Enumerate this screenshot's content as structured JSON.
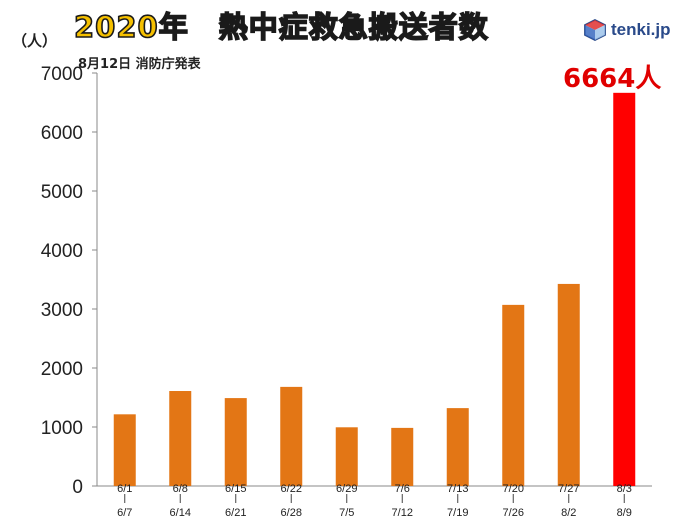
{
  "header": {
    "title": "2020年　熱中症救急搬送者数",
    "unit": "（人）",
    "source": "8月12日 消防庁発表",
    "brand": "tenki.jp"
  },
  "callout": {
    "text": "6664人"
  },
  "colors": {
    "bar": "#e37615",
    "highlight": "#ff0000",
    "callout": "#e00000",
    "title_fill": "#f5c000"
  },
  "chart_data": {
    "type": "bar",
    "title": "2020年　熱中症救急搬送者数",
    "ylabel": "（人）",
    "ylim": [
      0,
      7000
    ],
    "yticks": [
      0,
      1000,
      2000,
      3000,
      4000,
      5000,
      6000,
      7000
    ],
    "grid": false,
    "categories": [
      {
        "start": "6/1",
        "end": "6/7"
      },
      {
        "start": "6/8",
        "end": "6/14"
      },
      {
        "start": "6/15",
        "end": "6/21"
      },
      {
        "start": "6/22",
        "end": "6/28"
      },
      {
        "start": "6/29",
        "end": "7/5"
      },
      {
        "start": "7/6",
        "end": "7/12"
      },
      {
        "start": "7/13",
        "end": "7/19"
      },
      {
        "start": "7/20",
        "end": "7/26"
      },
      {
        "start": "7/27",
        "end": "8/2"
      },
      {
        "start": "8/3",
        "end": "8/9"
      }
    ],
    "values": [
      1215,
      1610,
      1490,
      1680,
      995,
      985,
      1320,
      3070,
      3425,
      6664
    ],
    "highlight_index": 9
  }
}
